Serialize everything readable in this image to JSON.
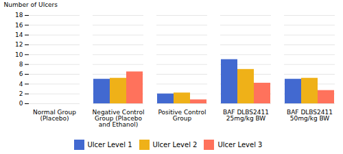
{
  "chart_data": {
    "type": "bar",
    "categories": [
      "Normal Group\n(Placebo)",
      "Negative Control\nGroup (Placebo\nand Ethanol)",
      "Positive Control\nGroup",
      "BAF DLBS2411\n25mg/kg BW",
      "BAF DLBS2411\n50mg/kg BW"
    ],
    "series": [
      {
        "name": "Ulcer Level 1",
        "values": [
          0,
          5,
          2,
          9,
          5
        ]
      },
      {
        "name": "Ulcer Level 2",
        "values": [
          0,
          5.2,
          2.2,
          7,
          5.2
        ]
      },
      {
        "name": "Ulcer Level 3",
        "values": [
          0,
          6.5,
          0.8,
          4.2,
          2.7
        ]
      }
    ],
    "ylabel": "Number of Ulcers",
    "ylim": [
      0,
      18
    ],
    "yticks": [
      0,
      2,
      4,
      6,
      8,
      10,
      12,
      14,
      16,
      18
    ],
    "grid": true,
    "legend": "bottom"
  }
}
